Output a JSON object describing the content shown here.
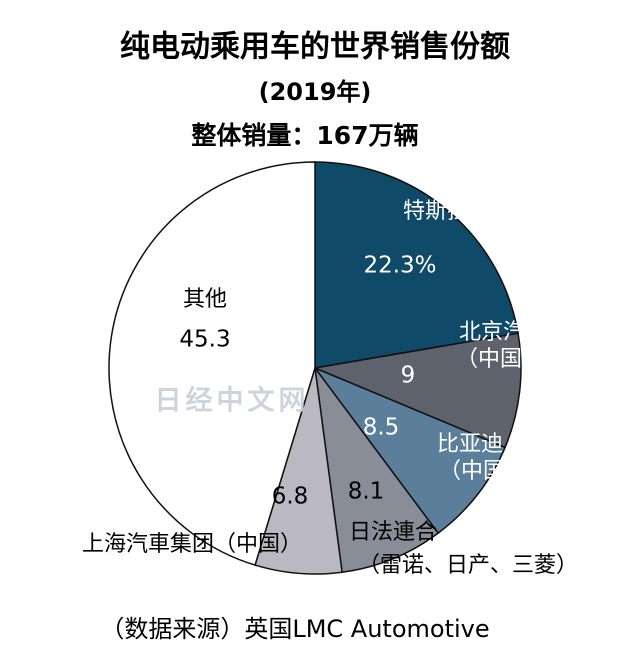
{
  "chart_data": {
    "type": "pie",
    "title": "纯电动乘用车的世界销售份额",
    "subtitle": "(2019年)",
    "total_label": "整体销量：167万辆",
    "source": "（数据来源）英国LMC Automotive",
    "watermark": "日经中文网",
    "categories": [
      [
        "特斯拉（美国）"
      ],
      [
        "北京汽車集团",
        "（中国）"
      ],
      [
        "比亚迪",
        "（中国、ＢＹＤ）"
      ],
      [
        "日法連合",
        "（雷诺、日产、三菱）"
      ],
      [
        "上海汽車集团（中国）"
      ],
      [
        "其他"
      ]
    ],
    "values": [
      22.3,
      9,
      8.5,
      8.1,
      6.8,
      45.3
    ],
    "value_labels": [
      "22.3%",
      "9",
      "8.5",
      "8.1",
      "6.8",
      "45.3"
    ],
    "colors": [
      "#0f4a69",
      "#5d626d",
      "#5b7e9b",
      "#898d97",
      "#bab8c1",
      "#ffffff"
    ]
  }
}
